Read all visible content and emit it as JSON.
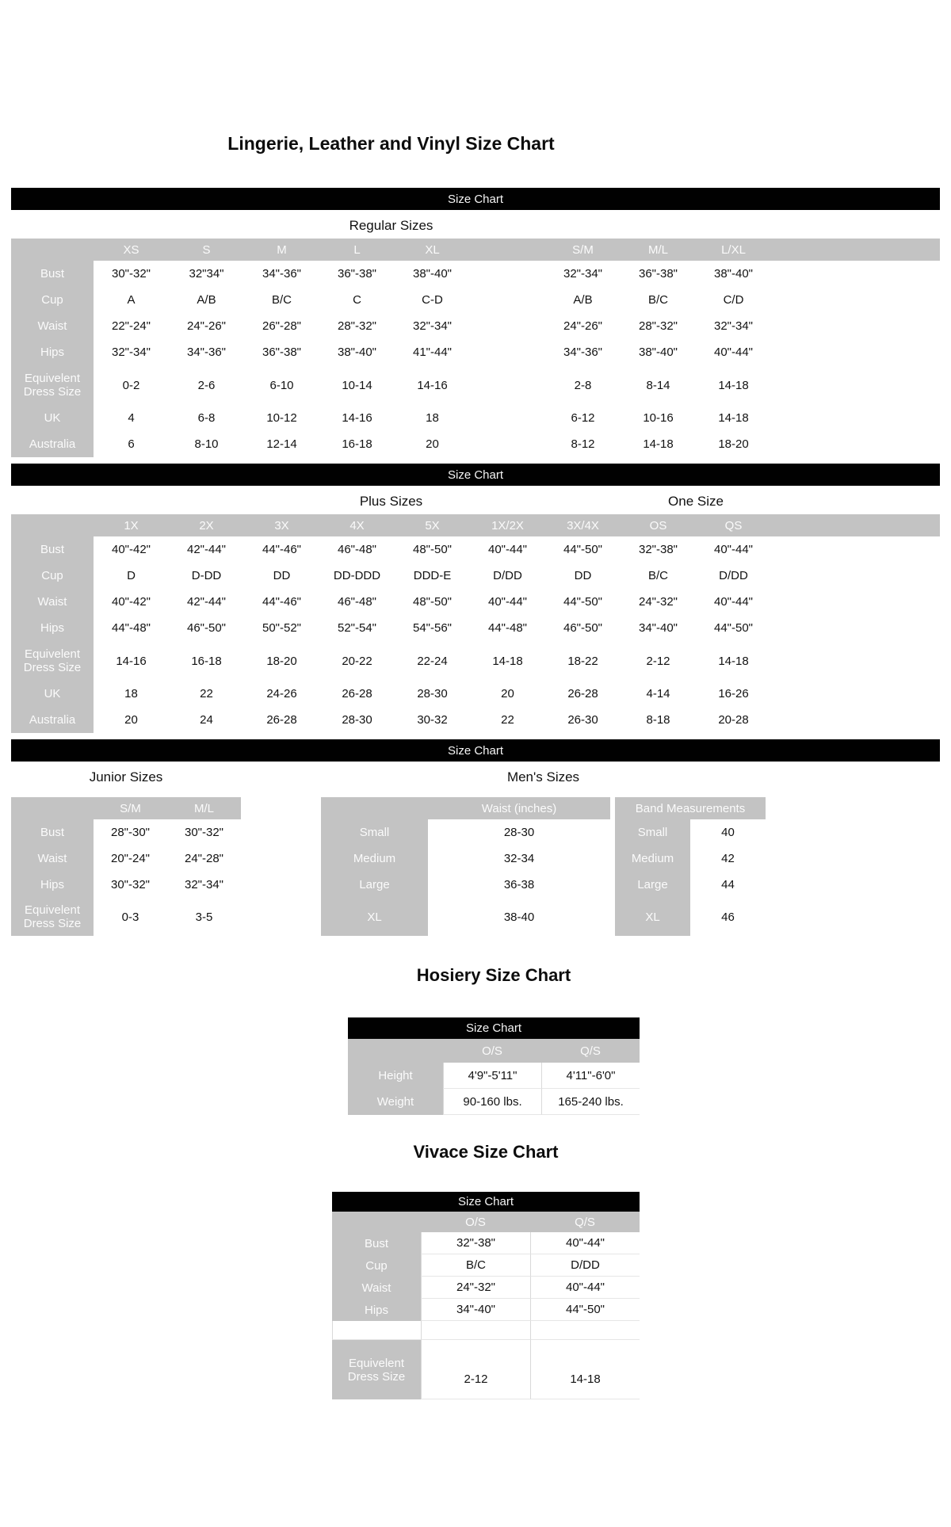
{
  "title": "Lingerie, Leather and Vinyl Size Chart",
  "bar_label": "Size Chart",
  "regular": {
    "subtitle": "Regular Sizes",
    "columns": [
      "XS",
      "S",
      "M",
      "L",
      "XL",
      "",
      "S/M",
      "M/L",
      "L/XL"
    ],
    "rows": [
      {
        "label": "Bust",
        "values": [
          "30\"-32\"",
          "32\"34\"",
          "34\"-36\"",
          "36\"-38\"",
          "38\"-40\"",
          "",
          "32\"-34\"",
          "36\"-38\"",
          "38\"-40\""
        ]
      },
      {
        "label": "Cup",
        "values": [
          "A",
          "A/B",
          "B/C",
          "C",
          "C-D",
          "",
          "A/B",
          "B/C",
          "C/D"
        ]
      },
      {
        "label": "Waist",
        "values": [
          "22\"-24\"",
          "24\"-26\"",
          "26\"-28\"",
          "28\"-32\"",
          "32\"-34\"",
          "",
          "24\"-26\"",
          "28\"-32\"",
          "32\"-34\""
        ]
      },
      {
        "label": "Hips",
        "values": [
          "32\"-34\"",
          "34\"-36\"",
          "36\"-38\"",
          "38\"-40\"",
          "41\"-44\"",
          "",
          "34\"-36\"",
          "38\"-40\"",
          "40\"-44\""
        ]
      },
      {
        "label": "Equivelent Dress Size",
        "values": [
          "0-2",
          "2-6",
          "6-10",
          "10-14",
          "14-16",
          "",
          "2-8",
          "8-14",
          "14-18"
        ]
      },
      {
        "label": "UK",
        "values": [
          "4",
          "6-8",
          "10-12",
          "14-16",
          "18",
          "",
          "6-12",
          "10-16",
          "14-18"
        ]
      },
      {
        "label": "Australia",
        "values": [
          "6",
          "8-10",
          "12-14",
          "16-18",
          "20",
          "",
          "8-12",
          "14-18",
          "18-20"
        ]
      }
    ]
  },
  "plus": {
    "subtitle": "Plus Sizes",
    "one_size_label": "One Size",
    "columns": [
      "1X",
      "2X",
      "3X",
      "4X",
      "5X",
      "1X/2X",
      "3X/4X",
      "OS",
      "QS"
    ],
    "rows": [
      {
        "label": "Bust",
        "values": [
          "40\"-42\"",
          "42\"-44\"",
          "44\"-46\"",
          "46\"-48\"",
          "48\"-50\"",
          "40\"-44\"",
          "44\"-50\"",
          "32\"-38\"",
          "40\"-44\""
        ]
      },
      {
        "label": "Cup",
        "values": [
          "D",
          "D-DD",
          "DD",
          "DD-DDD",
          "DDD-E",
          "D/DD",
          "DD",
          "B/C",
          "D/DD"
        ]
      },
      {
        "label": "Waist",
        "values": [
          "40\"-42\"",
          "42\"-44\"",
          "44\"-46\"",
          "46\"-48\"",
          "48\"-50\"",
          "40\"-44\"",
          "44\"-50\"",
          "24\"-32\"",
          "40\"-44\""
        ]
      },
      {
        "label": "Hips",
        "values": [
          "44\"-48\"",
          "46\"-50\"",
          "50\"-52\"",
          "52\"-54\"",
          "54\"-56\"",
          "44\"-48\"",
          "46\"-50\"",
          "34\"-40\"",
          "44\"-50\""
        ]
      },
      {
        "label": "Equivelent Dress Size",
        "values": [
          "14-16",
          "16-18",
          "18-20",
          "20-22",
          "22-24",
          "14-18",
          "18-22",
          "2-12",
          "14-18"
        ]
      },
      {
        "label": "UK",
        "values": [
          "18",
          "22",
          "24-26",
          "26-28",
          "28-30",
          "20",
          "26-28",
          "4-14",
          "16-26"
        ]
      },
      {
        "label": "Australia",
        "values": [
          "20",
          "24",
          "26-28",
          "28-30",
          "30-32",
          "22",
          "26-30",
          "8-18",
          "20-28"
        ]
      }
    ]
  },
  "junior": {
    "subtitle": "Junior Sizes",
    "columns": [
      "S/M",
      "M/L"
    ],
    "rows": [
      {
        "label": "Bust",
        "values": [
          "28\"-30\"",
          "30\"-32\""
        ]
      },
      {
        "label": "Waist",
        "values": [
          "20\"-24\"",
          "24\"-28\""
        ]
      },
      {
        "label": "Hips",
        "values": [
          "30\"-32\"",
          "32\"-34\""
        ]
      },
      {
        "label": "Equivelent Dress Size",
        "values": [
          "0-3",
          "3-5"
        ]
      }
    ]
  },
  "mens": {
    "subtitle": "Men's Sizes",
    "waist_table": {
      "header": "Waist (inches)",
      "rows": [
        {
          "label": "Small",
          "value": "28-30"
        },
        {
          "label": "Medium",
          "value": "32-34"
        },
        {
          "label": "Large",
          "value": "36-38"
        },
        {
          "label": "XL",
          "value": "38-40"
        }
      ]
    },
    "band_table": {
      "header": "Band Measurements",
      "rows": [
        {
          "label": "Small",
          "value": "40"
        },
        {
          "label": "Medium",
          "value": "42"
        },
        {
          "label": "Large",
          "value": "44"
        },
        {
          "label": "XL",
          "value": "46"
        }
      ]
    }
  },
  "hosiery": {
    "title": "Hosiery Size Chart",
    "columns": [
      "O/S",
      "Q/S"
    ],
    "rows": [
      {
        "label": "Height",
        "values": [
          "4'9\"-5'11\"",
          "4'11\"-6'0\""
        ]
      },
      {
        "label": "Weight",
        "values": [
          "90-160 lbs.",
          "165-240 lbs."
        ]
      }
    ]
  },
  "vivace": {
    "title": "Vivace Size Chart",
    "columns": [
      "O/S",
      "Q/S"
    ],
    "rows": [
      {
        "label": "Bust",
        "values": [
          "32\"-38\"",
          "40\"-44\""
        ]
      },
      {
        "label": "Cup",
        "values": [
          "B/C",
          "D/DD"
        ]
      },
      {
        "label": "Waist",
        "values": [
          "24\"-32\"",
          "40\"-44\""
        ]
      },
      {
        "label": "Hips",
        "values": [
          "34\"-40\"",
          "44\"-50\""
        ]
      },
      {
        "label": "",
        "values": [
          "",
          ""
        ]
      },
      {
        "label": "Equivelent Dress Size",
        "values": [
          "2-12",
          "14-18"
        ]
      }
    ]
  }
}
